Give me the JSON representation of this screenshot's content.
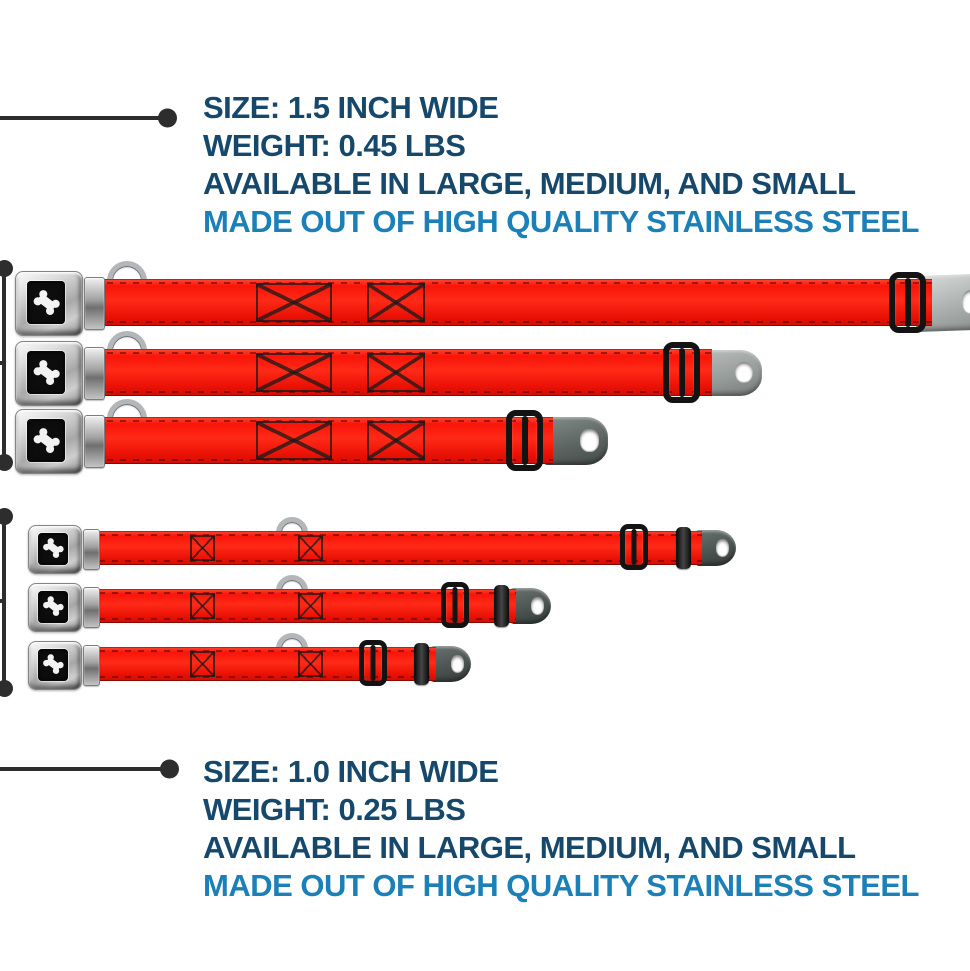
{
  "colors": {
    "background": "#ffffff",
    "heading_text": "#16486b",
    "accent_text": "#1b80b7",
    "annotation": "#2d2d2d",
    "collar_red": "#f81408"
  },
  "info_blocks": [
    {
      "id": "top",
      "lines": [
        {
          "text": "SIZE: 1.5 INCH WIDE",
          "accent": false
        },
        {
          "text": "WEIGHT: 0.45 LBS",
          "accent": false
        },
        {
          "text": "AVAILABLE IN LARGE, MEDIUM, AND SMALL",
          "accent": false
        },
        {
          "text": "MADE OUT OF HIGH QUALITY STAINLESS STEEL",
          "accent": true
        }
      ]
    },
    {
      "id": "bottom",
      "lines": [
        {
          "text": "SIZE: 1.0 INCH WIDE",
          "accent": false
        },
        {
          "text": "WEIGHT: 0.25 LBS",
          "accent": false
        },
        {
          "text": "AVAILABLE IN LARGE, MEDIUM, AND SMALL",
          "accent": false
        },
        {
          "text": "MADE OUT OF HIGH QUALITY STAINLESS STEEL",
          "accent": true
        }
      ]
    }
  ],
  "collar_groups": [
    {
      "id": "collars-1-5-inch",
      "width_inches": "1.5",
      "sizes": [
        "large",
        "medium",
        "small"
      ]
    },
    {
      "id": "collars-1-0-inch",
      "width_inches": "1.0",
      "sizes": [
        "large",
        "medium",
        "small"
      ]
    }
  ],
  "icons": {
    "buckle_logo": "dog-bone-icon"
  }
}
